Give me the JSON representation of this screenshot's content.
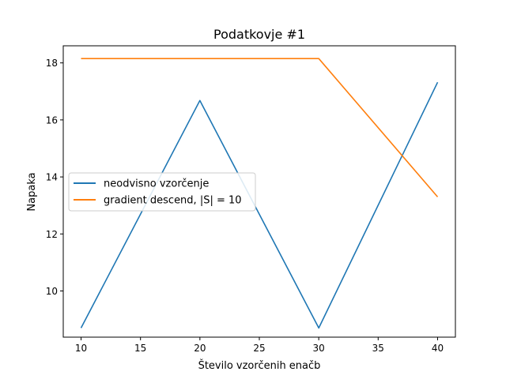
{
  "chart_data": {
    "type": "line",
    "title": "Podatkovje #1",
    "xlabel": "Število vzorčenih enačb",
    "ylabel": "Napaka",
    "x": [
      10,
      20,
      30,
      40
    ],
    "series": [
      {
        "name": "neodvisno vzorčenje",
        "values": [
          8.7,
          16.68,
          8.7,
          17.32
        ],
        "color": "#1f77b4"
      },
      {
        "name": "gradient descend, |S| = 10",
        "values": [
          18.15,
          18.15,
          18.15,
          13.3
        ],
        "color": "#ff7f0e"
      }
    ],
    "xlim": [
      8.5,
      41.5
    ],
    "ylim": [
      8.38,
      18.6
    ],
    "xticks": [
      10,
      15,
      20,
      25,
      30,
      35,
      40
    ],
    "yticks": [
      10,
      12,
      14,
      16,
      18
    ],
    "grid": false,
    "legend_position": "center-left"
  }
}
